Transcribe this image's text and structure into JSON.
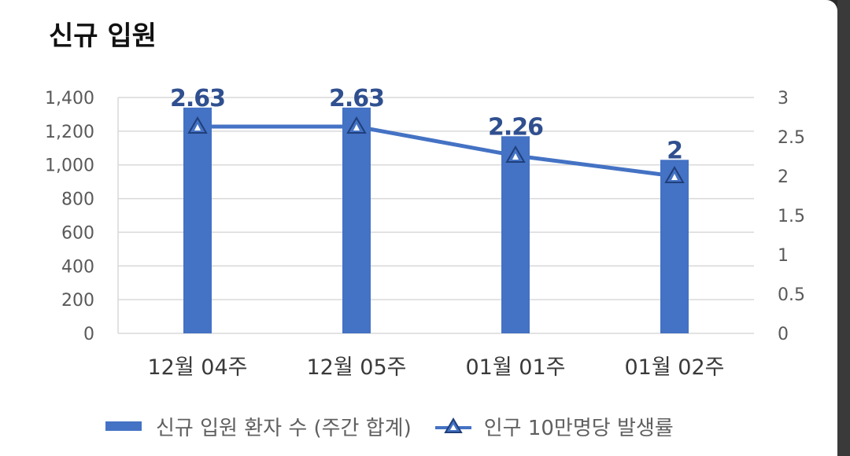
{
  "title": "신규 입원",
  "colors": {
    "bar": "#4472c4",
    "line": "#4472c4",
    "label": "#2f4f8f",
    "grid": "#d9d9d9",
    "axis_text": "#595959"
  },
  "legend": {
    "bar_label": "신규 입원 환자 수 (주간 합계)",
    "line_label": "인구 10만명당 발생률"
  },
  "chart_data": {
    "type": "bar",
    "categories": [
      "12월 04주",
      "12월 05주",
      "01월 01주",
      "01월 02주"
    ],
    "series": [
      {
        "name": "신규 입원 환자 수 (주간 합계)",
        "type": "bar",
        "axis": "left",
        "values": [
          1340,
          1340,
          1170,
          1030
        ]
      },
      {
        "name": "인구 10만명당 발생률",
        "type": "line",
        "axis": "right",
        "values": [
          2.63,
          2.63,
          2.26,
          2
        ],
        "labels": [
          "2.63",
          "2.63",
          "2.26",
          "2"
        ]
      }
    ],
    "y_left": {
      "ylim": [
        0,
        1400
      ],
      "ticks": [
        "0",
        "200",
        "400",
        "600",
        "800",
        "1,000",
        "1,200",
        "1,400"
      ]
    },
    "y_right": {
      "ylim": [
        0,
        3
      ],
      "ticks": [
        "0",
        "0.5",
        "1",
        "1.5",
        "2",
        "2.5",
        "3"
      ]
    },
    "grid": true,
    "legend_position": "bottom"
  }
}
